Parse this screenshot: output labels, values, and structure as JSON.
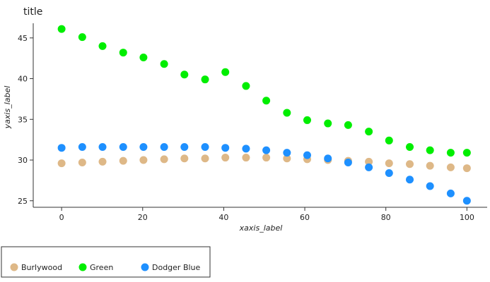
{
  "chart_data": {
    "type": "scatter",
    "title": "title",
    "xlabel": "xaxis_label",
    "ylabel": "yaxis_label",
    "xlim": [
      -7,
      105
    ],
    "ylim": [
      24.2,
      46.8
    ],
    "xticks": [
      "0",
      "20",
      "40",
      "60",
      "80",
      "100"
    ],
    "yticks": [
      "25",
      "30",
      "35",
      "40",
      "45"
    ],
    "grid": false,
    "legend_position": "bottom",
    "series": [
      {
        "name": "Burlywood",
        "color": "#DEB887",
        "x": [
          0,
          5.1,
          10.1,
          15.2,
          20.2,
          25.3,
          30.3,
          35.4,
          40.4,
          45.5,
          50.5,
          55.6,
          60.6,
          65.7,
          70.7,
          75.8,
          80.8,
          85.9,
          90.9,
          96,
          100
        ],
        "y": [
          29.6,
          29.7,
          29.8,
          29.9,
          30,
          30.1,
          30.2,
          30.2,
          30.3,
          30.3,
          30.3,
          30.2,
          30.1,
          30,
          29.9,
          29.8,
          29.6,
          29.5,
          29.3,
          29.1,
          29
        ]
      },
      {
        "name": "Green",
        "color": "#00EE00",
        "x": [
          0,
          5.1,
          10.1,
          15.2,
          20.2,
          25.3,
          30.3,
          35.4,
          40.4,
          45.5,
          50.5,
          55.6,
          60.6,
          65.7,
          70.7,
          75.8,
          80.8,
          85.9,
          90.9,
          96,
          100
        ],
        "y": [
          46.1,
          45.1,
          44,
          43.2,
          42.6,
          41.8,
          40.5,
          39.9,
          40.8,
          39.1,
          37.3,
          35.8,
          34.9,
          34.5,
          34.3,
          33.5,
          32.4,
          31.6,
          31.2,
          30.9,
          30.9
        ]
      },
      {
        "name": "Dodger Blue",
        "color": "#1E90FF",
        "x": [
          0,
          5.1,
          10.1,
          15.2,
          20.2,
          25.3,
          30.3,
          35.4,
          40.4,
          45.5,
          50.5,
          55.6,
          60.6,
          65.7,
          70.7,
          75.8,
          80.8,
          85.9,
          90.9,
          96,
          100
        ],
        "y": [
          31.5,
          31.6,
          31.6,
          31.6,
          31.6,
          31.6,
          31.6,
          31.6,
          31.5,
          31.4,
          31.2,
          30.9,
          30.6,
          30.2,
          29.7,
          29.1,
          28.4,
          27.6,
          26.8,
          25.9,
          25
        ]
      }
    ]
  }
}
